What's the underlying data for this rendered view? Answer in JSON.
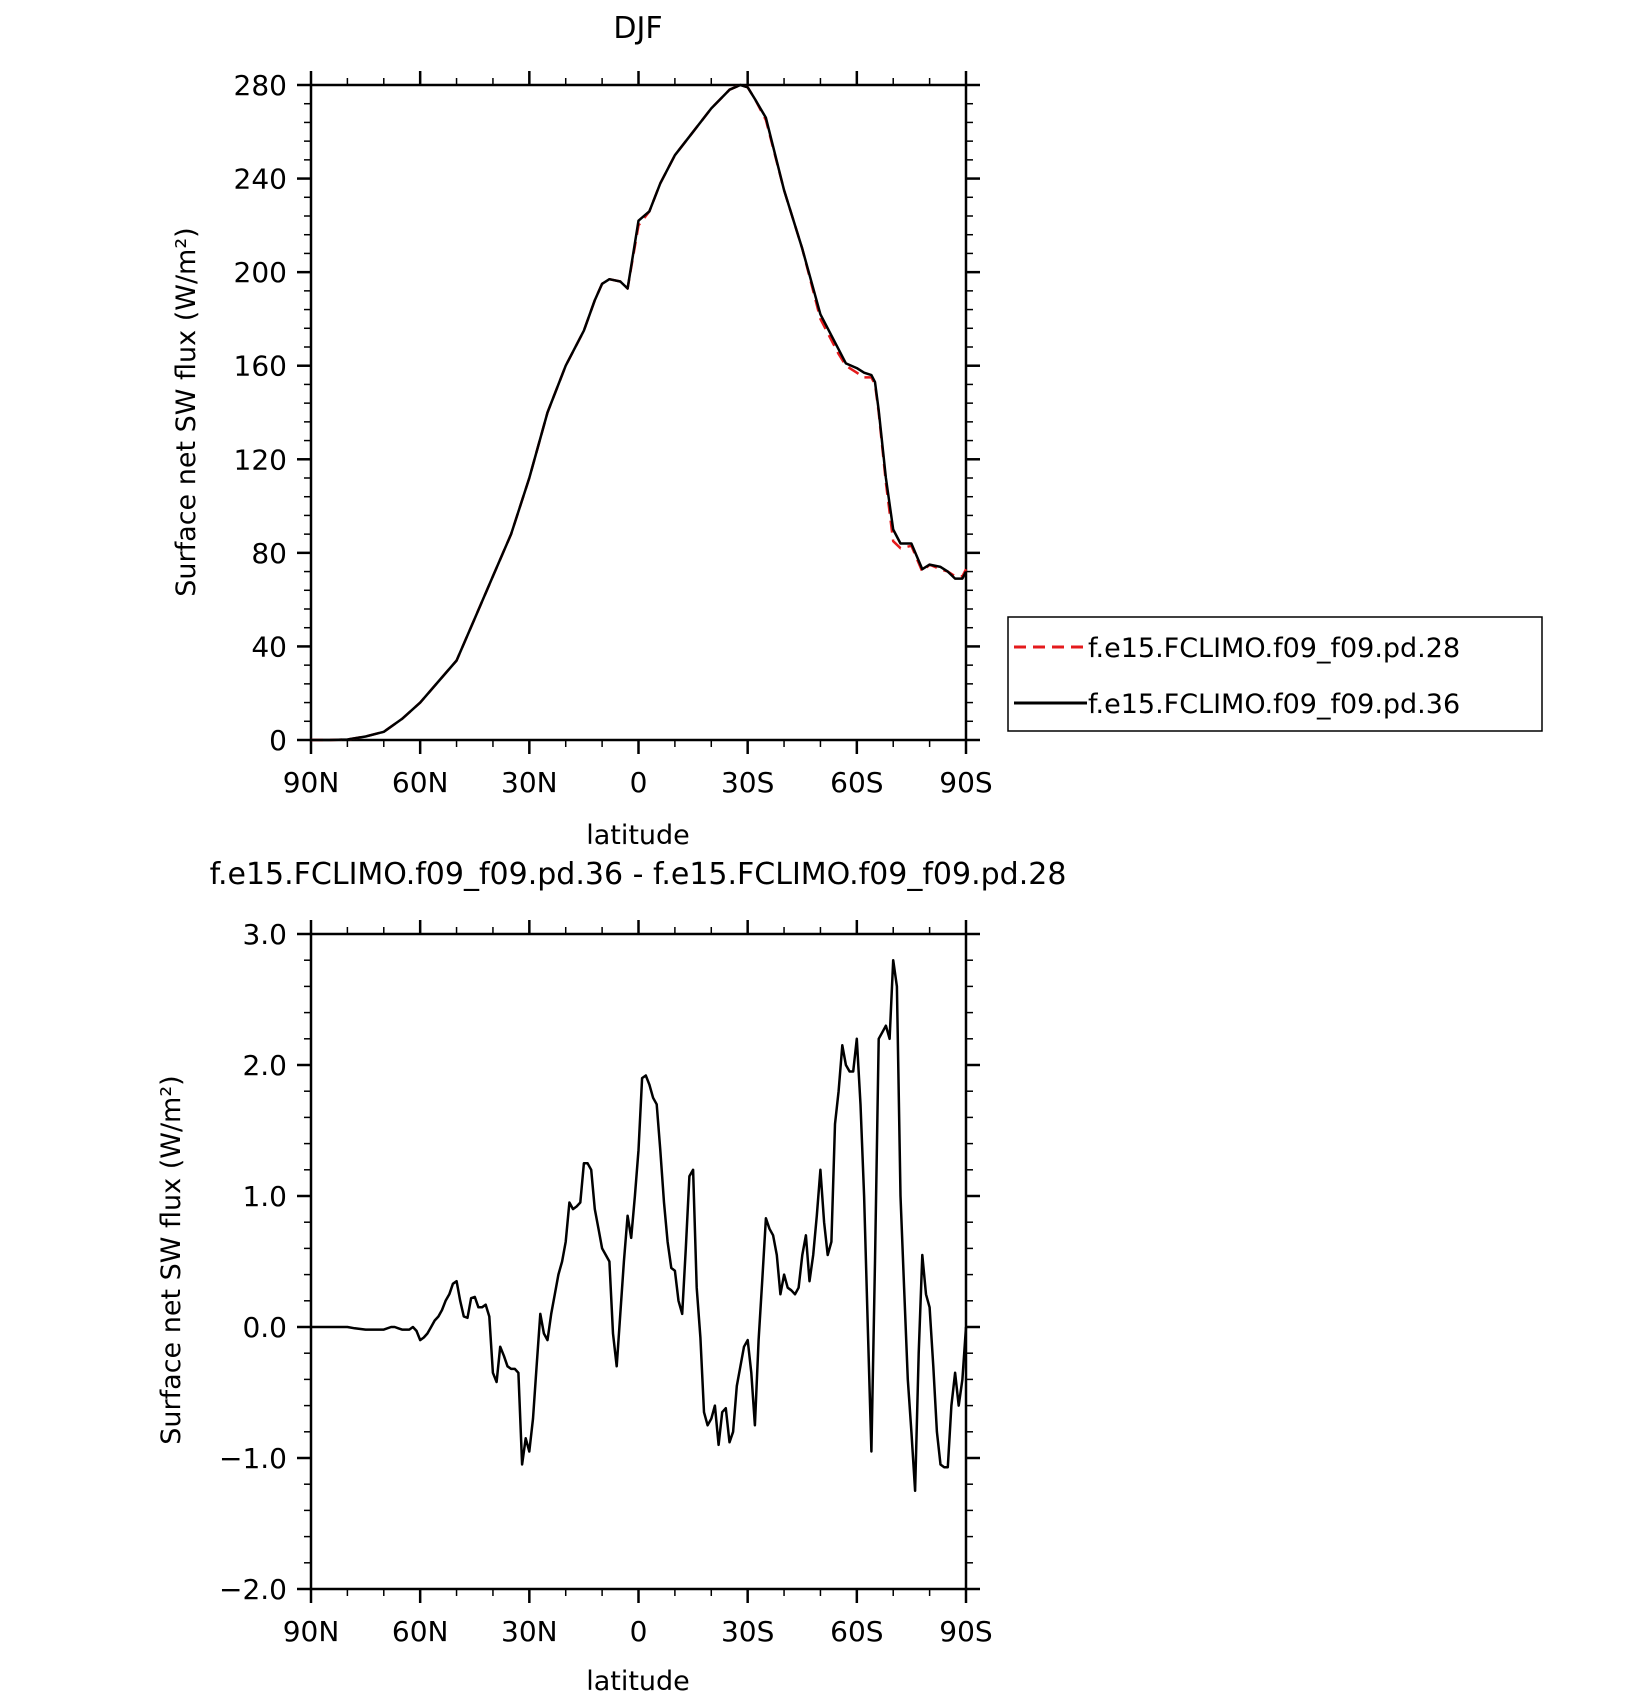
{
  "chart_data": [
    {
      "type": "line",
      "title": "DJF",
      "xlabel": "latitude",
      "ylabel": "Surface net SW flux (W/m²)",
      "xlim": [
        90,
        -90
      ],
      "ylim": [
        0,
        280
      ],
      "x_ticks": [
        90,
        60,
        30,
        0,
        -30,
        -60,
        -90
      ],
      "x_tick_labels": [
        "90N",
        "60N",
        "30N",
        "0",
        "30S",
        "60S",
        "90S"
      ],
      "y_ticks": [
        0,
        40,
        80,
        120,
        160,
        200,
        240,
        280
      ],
      "y_tick_labels": [
        "0",
        "40",
        "80",
        "120",
        "160",
        "200",
        "240",
        "280"
      ],
      "legend_position": "right",
      "grid": false,
      "x": [
        90,
        85,
        80,
        75,
        70,
        65,
        60,
        55,
        50,
        45,
        40,
        35,
        30,
        25,
        20,
        15,
        12,
        10,
        8,
        5,
        3,
        0,
        -3,
        -6,
        -10,
        -15,
        -20,
        -25,
        -28,
        -30,
        -32,
        -35,
        -40,
        -45,
        -50,
        -55,
        -57,
        -60,
        -62,
        -64,
        -65,
        -66,
        -68,
        -70,
        -72,
        -75,
        -78,
        -80,
        -83,
        -85,
        -87,
        -89,
        -90
      ],
      "series": [
        {
          "name": "f.e15.FCLIMO.f09_f09.pd.28",
          "color": "#e41a1c",
          "dash": "dashed",
          "values": [
            0,
            0,
            0.2,
            1.5,
            3.5,
            9,
            16,
            25,
            34,
            52,
            70,
            88,
            112,
            140,
            160,
            175,
            188,
            195,
            197,
            196,
            193,
            220,
            226,
            238,
            250,
            260,
            270,
            278,
            280,
            279,
            274,
            265,
            235,
            210,
            180,
            165,
            160,
            157,
            155,
            155,
            152,
            140,
            110,
            85,
            82,
            83,
            72,
            75,
            73,
            72,
            70,
            70,
            73
          ]
        },
        {
          "name": "f.e15.FCLIMO.f09_f09.pd.36",
          "color": "#000000",
          "dash": "solid",
          "values": [
            0,
            0,
            0.2,
            1.5,
            3.5,
            9,
            16,
            25,
            34,
            52,
            70,
            88,
            112,
            140,
            160,
            175,
            188,
            195,
            197,
            196,
            193,
            222,
            226,
            238,
            250,
            260,
            270,
            278,
            280,
            279,
            274,
            266,
            235,
            210,
            182,
            167,
            161,
            159,
            157,
            156,
            153,
            141,
            112,
            90,
            84,
            84,
            73,
            75,
            74,
            72,
            69,
            69,
            72
          ]
        }
      ]
    },
    {
      "type": "line",
      "title": "f.e15.FCLIMO.f09_f09.pd.36 - f.e15.FCLIMO.f09_f09.pd.28",
      "xlabel": "latitude",
      "ylabel": "Surface net SW flux (W/m²)",
      "xlim": [
        90,
        -90
      ],
      "ylim": [
        -2,
        3
      ],
      "x_ticks": [
        90,
        60,
        30,
        0,
        -30,
        -60,
        -90
      ],
      "x_tick_labels": [
        "90N",
        "60N",
        "30N",
        "0",
        "30S",
        "60S",
        "90S"
      ],
      "y_ticks": [
        -2,
        -1,
        0,
        1,
        2,
        3
      ],
      "y_tick_labels": [
        "−2.0",
        "−1.0",
        "0.0",
        "1.0",
        "2.0",
        "3.0"
      ],
      "grid": false,
      "series": [
        {
          "color": "#000000",
          "x": [
            90,
            82,
            80,
            78,
            75,
            72,
            70,
            68,
            67,
            66,
            65,
            64,
            63,
            62,
            61,
            60,
            59,
            58,
            57,
            56,
            55,
            54,
            53,
            52,
            51,
            50,
            49,
            48,
            47,
            46,
            45,
            44,
            43,
            42,
            41,
            40,
            39,
            38,
            37,
            36,
            35,
            34,
            33,
            32,
            31,
            30,
            29,
            28,
            27,
            26,
            25,
            24,
            23,
            22,
            21,
            20,
            19,
            18,
            17,
            16,
            15,
            14,
            13,
            12,
            11,
            10,
            9,
            8,
            7,
            6,
            5,
            4,
            3,
            2,
            1,
            0,
            -1,
            -2,
            -3,
            -4,
            -5,
            -6,
            -7,
            -8,
            -9,
            -10,
            -11,
            -12,
            -13,
            -14,
            -15,
            -16,
            -17,
            -18,
            -19,
            -20,
            -21,
            -22,
            -23,
            -24,
            -25,
            -26,
            -27,
            -28,
            -29,
            -30,
            -31,
            -32,
            -33,
            -34,
            -35,
            -36,
            -37,
            -38,
            -39,
            -40,
            -41,
            -42,
            -43,
            -44,
            -45,
            -46,
            -47,
            -48,
            -49,
            -50,
            -51,
            -52,
            -53,
            -54,
            -55,
            -56,
            -57,
            -58,
            -59,
            -60,
            -61,
            -62,
            -63,
            -64,
            -65,
            -66,
            -67,
            -68,
            -69,
            -70,
            -71,
            -72,
            -73,
            -74,
            -75,
            -76,
            -77,
            -78,
            -79,
            -80,
            -81,
            -82,
            -83,
            -84,
            -85,
            -86,
            -87,
            -88,
            -89,
            -90
          ],
          "values": [
            0,
            0,
            0,
            -0.01,
            -0.02,
            -0.02,
            -0.02,
            0.0,
            0.0,
            -0.01,
            -0.02,
            -0.02,
            -0.02,
            0.0,
            -0.03,
            -0.1,
            -0.08,
            -0.05,
            0.0,
            0.05,
            0.08,
            0.13,
            0.2,
            0.25,
            0.33,
            0.35,
            0.2,
            0.08,
            0.07,
            0.22,
            0.23,
            0.15,
            0.15,
            0.17,
            0.08,
            -0.35,
            -0.42,
            -0.15,
            -0.22,
            -0.3,
            -0.32,
            -0.32,
            -0.35,
            -1.05,
            -0.85,
            -0.95,
            -0.7,
            -0.3,
            0.1,
            -0.05,
            -0.1,
            0.1,
            0.25,
            0.4,
            0.5,
            0.65,
            0.95,
            0.9,
            0.92,
            0.95,
            1.25,
            1.25,
            1.2,
            0.9,
            0.75,
            0.6,
            0.55,
            0.5,
            -0.05,
            -0.3,
            0.1,
            0.5,
            0.85,
            0.68,
            1.0,
            1.35,
            1.9,
            1.92,
            1.85,
            1.75,
            1.7,
            1.35,
            0.95,
            0.65,
            0.45,
            0.43,
            0.2,
            0.1,
            0.6,
            1.15,
            1.2,
            0.3,
            -0.08,
            -0.65,
            -0.75,
            -0.7,
            -0.6,
            -0.9,
            -0.65,
            -0.62,
            -0.88,
            -0.8,
            -0.45,
            -0.3,
            -0.15,
            -0.1,
            -0.35,
            -0.75,
            -0.1,
            0.35,
            0.83,
            0.75,
            0.7,
            0.55,
            0.25,
            0.4,
            0.3,
            0.28,
            0.25,
            0.3,
            0.55,
            0.7,
            0.35,
            0.55,
            0.85,
            1.2,
            0.8,
            0.55,
            0.65,
            1.55,
            1.8,
            2.15,
            2.0,
            1.95,
            1.95,
            2.2,
            1.7,
            1.0,
            0.0,
            -0.95,
            0.5,
            2.2,
            2.25,
            2.3,
            2.2,
            2.8,
            2.6,
            1.0,
            0.3,
            -0.4,
            -0.8,
            -1.25,
            -0.2,
            0.55,
            0.25,
            0.15,
            -0.3,
            -0.8,
            -1.05,
            -1.07,
            -1.07,
            -0.6,
            -0.35,
            -0.6,
            -0.4,
            0.0
          ]
        }
      ]
    }
  ]
}
